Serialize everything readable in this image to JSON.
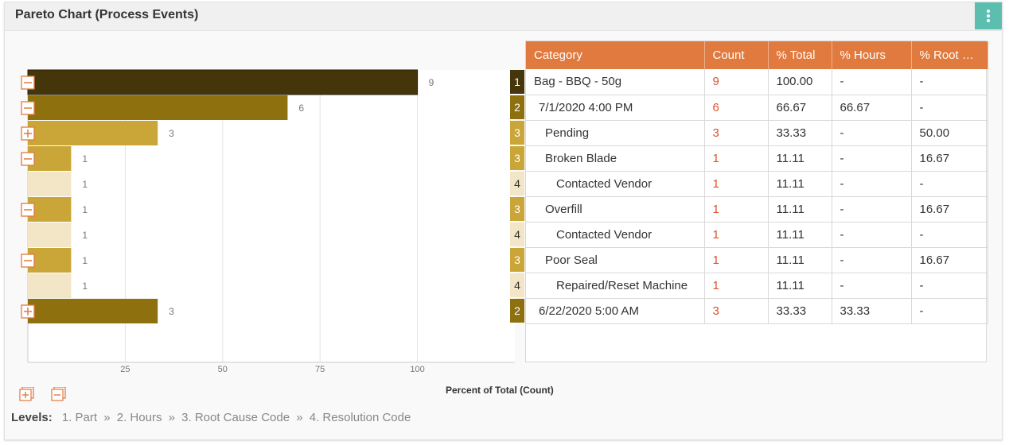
{
  "header": {
    "title": "Pareto Chart (Process Events)",
    "menu_icon": "more-vertical-icon"
  },
  "chart": {
    "axis_title": "Percent of Total (Count)",
    "ticks": [
      "25",
      "50",
      "75",
      "100"
    ],
    "xlim": [
      0,
      125
    ],
    "colors": {
      "1": "#45350a",
      "2": "#8f700f",
      "3": "#caa537",
      "4": "#f3e6c6"
    }
  },
  "chart_data": {
    "type": "bar",
    "orientation": "horizontal",
    "xlabel": "Percent of Total (Count)",
    "xticks": [
      25,
      50,
      75,
      100
    ],
    "categories": [
      "Bag - BBQ - 50g",
      "7/1/2020 4:00 PM",
      "Pending",
      "Broken Blade",
      "Contacted Vendor",
      "Overfill",
      "Contacted Vendor",
      "Poor Seal",
      "Repaired/Reset Machine",
      "6/22/2020 5:00 AM"
    ],
    "levels": [
      1,
      2,
      3,
      3,
      4,
      3,
      4,
      3,
      4,
      2
    ],
    "percent_total": [
      100.0,
      66.67,
      33.33,
      11.11,
      11.11,
      11.11,
      11.11,
      11.11,
      11.11,
      33.33
    ],
    "values": [
      9,
      6,
      3,
      1,
      1,
      1,
      1,
      1,
      1,
      3
    ],
    "toggles": [
      "minus",
      "minus",
      "plus",
      "minus",
      "none",
      "minus",
      "none",
      "minus",
      "none",
      "plus"
    ]
  },
  "table": {
    "columns": [
      "Category",
      "Count",
      "% Total",
      "% Hours",
      "% Root Ca..."
    ],
    "rows": [
      {
        "level": "1",
        "category": "Bag - BBQ - 50g",
        "count": "9",
        "total": "100.00",
        "hours": "-",
        "root": "-"
      },
      {
        "level": "2",
        "category": "7/1/2020 4:00 PM",
        "count": "6",
        "total": "66.67",
        "hours": "66.67",
        "root": "-"
      },
      {
        "level": "3",
        "category": "Pending",
        "count": "3",
        "total": "33.33",
        "hours": "-",
        "root": "50.00"
      },
      {
        "level": "3",
        "category": "Broken Blade",
        "count": "1",
        "total": "11.11",
        "hours": "-",
        "root": "16.67"
      },
      {
        "level": "4",
        "category": "Contacted Vendor",
        "count": "1",
        "total": "11.11",
        "hours": "-",
        "root": "-"
      },
      {
        "level": "3",
        "category": "Overfill",
        "count": "1",
        "total": "11.11",
        "hours": "-",
        "root": "16.67"
      },
      {
        "level": "4",
        "category": "Contacted Vendor",
        "count": "1",
        "total": "11.11",
        "hours": "-",
        "root": "-"
      },
      {
        "level": "3",
        "category": "Poor Seal",
        "count": "1",
        "total": "11.11",
        "hours": "-",
        "root": "16.67"
      },
      {
        "level": "4",
        "category": "Repaired/Reset Machine",
        "count": "1",
        "total": "11.11",
        "hours": "-",
        "root": "-"
      },
      {
        "level": "2",
        "category": "6/22/2020 5:00 AM",
        "count": "3",
        "total": "33.33",
        "hours": "33.33",
        "root": "-"
      }
    ]
  },
  "footer": {
    "expand_all_icon": "expand-all-icon",
    "collapse_all_icon": "collapse-all-icon",
    "levels_label": "Levels:",
    "levels": [
      "1. Part",
      "2. Hours",
      "3. Root Cause Code",
      "4. Resolution Code"
    ],
    "separator": "»"
  }
}
